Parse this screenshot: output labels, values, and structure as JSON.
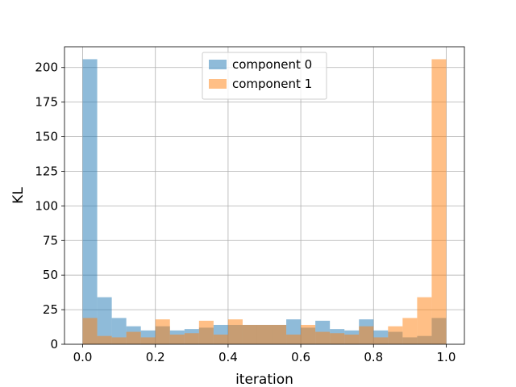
{
  "chart_data": {
    "type": "histogram",
    "title": "",
    "xlabel": "iteration",
    "ylabel": "KL",
    "xlim": [
      -0.05,
      1.05
    ],
    "ylim": [
      0,
      215
    ],
    "xticks": [
      0.0,
      0.2,
      0.4,
      0.6,
      0.8,
      1.0
    ],
    "xtick_labels": [
      "0.0",
      "0.2",
      "0.4",
      "0.6",
      "0.8",
      "1.0"
    ],
    "yticks": [
      0,
      25,
      50,
      75,
      100,
      125,
      150,
      175,
      200
    ],
    "ytick_labels": [
      "0",
      "25",
      "50",
      "75",
      "100",
      "125",
      "150",
      "175",
      "200"
    ],
    "grid": true,
    "legend_position": "top-center",
    "bins": 25,
    "bin_range": [
      0.0,
      1.0
    ],
    "series": [
      {
        "name": "component 0",
        "color": "#1f77b4",
        "alpha": 0.5,
        "values": [
          206,
          34,
          19,
          13,
          10,
          13,
          10,
          11,
          12,
          14,
          14,
          14,
          14,
          14,
          18,
          12,
          17,
          11,
          10,
          18,
          10,
          9,
          5,
          6,
          19
        ]
      },
      {
        "name": "component 1",
        "color": "#ff7f0e",
        "alpha": 0.5,
        "values": [
          19,
          6,
          5,
          9,
          5,
          18,
          7,
          8,
          17,
          7,
          18,
          14,
          14,
          14,
          7,
          14,
          9,
          8,
          7,
          13,
          5,
          13,
          19,
          34,
          206
        ]
      }
    ]
  }
}
